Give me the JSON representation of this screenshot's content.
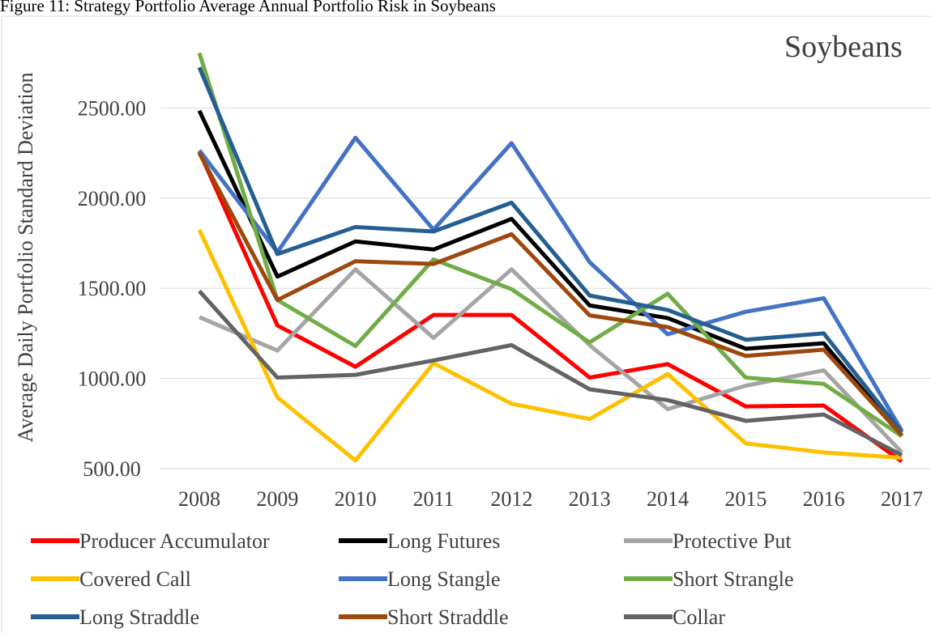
{
  "chart_data": {
    "type": "line",
    "title": "Figure 11: Strategy Portfolio Average Annual Portfolio Risk in Soybeans",
    "annotation": "Soybeans",
    "y_label": "Average Daily Portfolio Standard Deviation",
    "categories": [
      "2008",
      "2009",
      "2010",
      "2011",
      "2012",
      "2013",
      "2014",
      "2015",
      "2016",
      "2017"
    ],
    "ylim": [
      500,
      3000
    ],
    "yticks": [
      {
        "value": 500,
        "label": "500.00"
      },
      {
        "value": 1000,
        "label": "1000.00"
      },
      {
        "value": 1500,
        "label": "1500.00"
      },
      {
        "value": 2000,
        "label": "2000.00"
      },
      {
        "value": 2500,
        "label": "2500.00"
      }
    ],
    "grid": true,
    "series": [
      {
        "name": "Producer Accumulator",
        "color": "#ff0000",
        "values": [
          2258,
          1294,
          1065,
          1352,
          1352,
          1005,
          1080,
          845,
          850,
          540
        ]
      },
      {
        "name": "Long Futures",
        "color": "#000000",
        "values": [
          2485,
          1565,
          1760,
          1715,
          1885,
          1405,
          1335,
          1165,
          1195,
          680
        ]
      },
      {
        "name": "Protective Put",
        "color": "#a5a5a5",
        "values": [
          1340,
          1155,
          1605,
          1225,
          1605,
          1185,
          830,
          960,
          1045,
          590
        ]
      },
      {
        "name": "Covered Call",
        "color": "#ffc000",
        "values": [
          1825,
          895,
          545,
          1085,
          860,
          775,
          1025,
          640,
          590,
          560
        ]
      },
      {
        "name": "Long Stangle",
        "color": "#4472c4",
        "values": [
          2265,
          1700,
          2335,
          1825,
          2305,
          1645,
          1245,
          1370,
          1445,
          710
        ]
      },
      {
        "name": "Short Strangle",
        "color": "#70ad47",
        "values": [
          2805,
          1435,
          1180,
          1660,
          1495,
          1200,
          1470,
          1005,
          970,
          680
        ]
      },
      {
        "name": "Long Straddle",
        "color": "#255e91",
        "values": [
          2725,
          1690,
          1840,
          1815,
          1975,
          1460,
          1380,
          1215,
          1250,
          700
        ]
      },
      {
        "name": "Short Straddle",
        "color": "#9e480e",
        "values": [
          2250,
          1435,
          1650,
          1635,
          1800,
          1350,
          1285,
          1125,
          1160,
          685
        ]
      },
      {
        "name": "Collar",
        "color": "#636363",
        "values": [
          1485,
          1005,
          1020,
          1100,
          1185,
          940,
          880,
          765,
          800,
          575
        ]
      }
    ]
  }
}
